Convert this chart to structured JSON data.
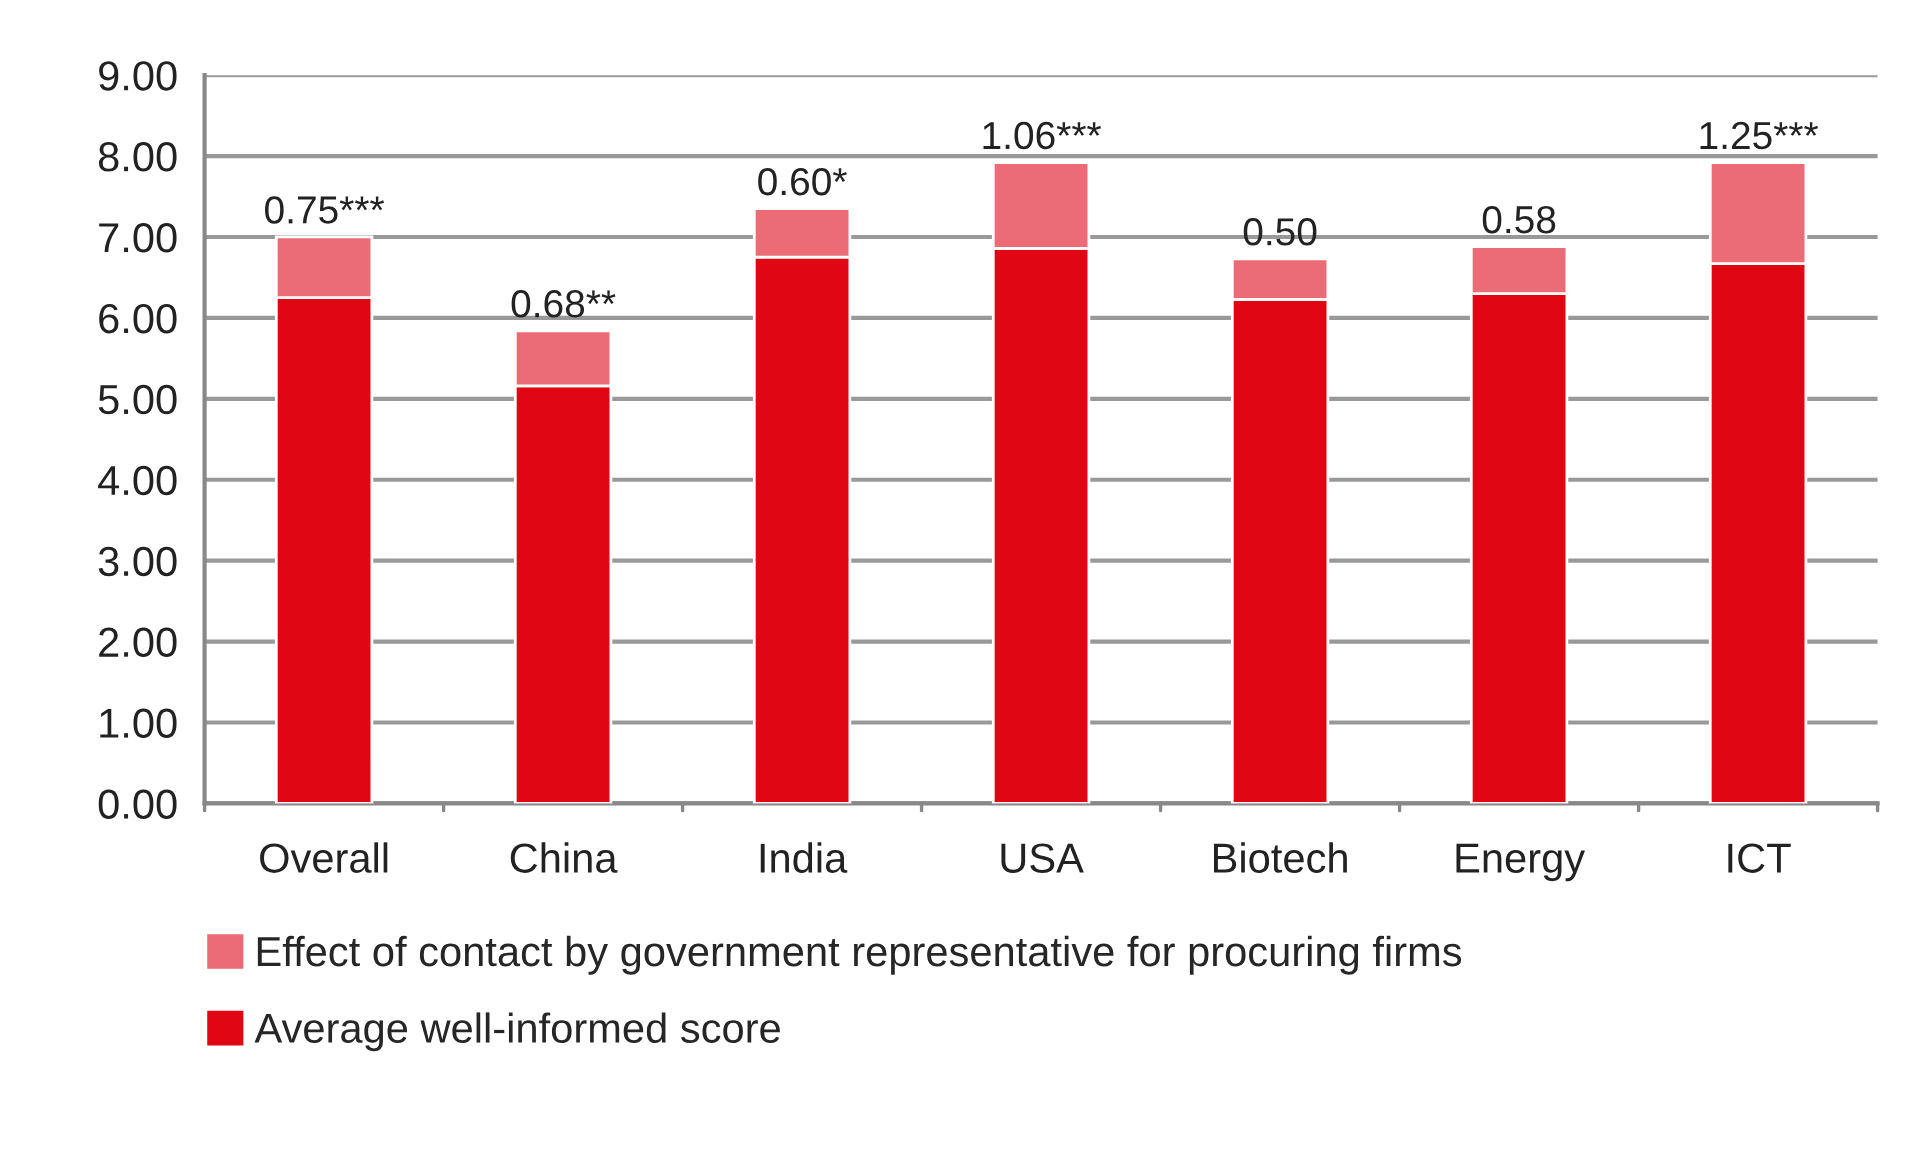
{
  "chart_data": {
    "type": "bar",
    "stacked": true,
    "categories": [
      "Overall",
      "China",
      "India",
      "USA",
      "Biotech",
      "Energy",
      "ICT"
    ],
    "series": [
      {
        "name": "Average well-informed score",
        "color": "#e10613",
        "values": [
          6.25,
          5.16,
          6.75,
          6.86,
          6.23,
          6.3,
          6.67
        ]
      },
      {
        "name": "Effect of contact by government representative for procuring firms",
        "color": "#eb6b76",
        "values": [
          0.75,
          0.68,
          0.6,
          1.06,
          0.5,
          0.58,
          1.25
        ],
        "value_labels": [
          "0.75***",
          "0.68**",
          "0.60*",
          "1.06***",
          "0.50",
          "0.58",
          "1.25***"
        ]
      }
    ],
    "ylim": [
      0,
      9
    ],
    "yticks": [
      {
        "value": 0,
        "label": "0.00"
      },
      {
        "value": 1,
        "label": "1.00"
      },
      {
        "value": 2,
        "label": "2.00"
      },
      {
        "value": 3,
        "label": "3.00"
      },
      {
        "value": 4,
        "label": "4.00"
      },
      {
        "value": 5,
        "label": "5.00"
      },
      {
        "value": 6,
        "label": "6.00"
      },
      {
        "value": 7,
        "label": "7.00"
      },
      {
        "value": 8,
        "label": "8.00"
      },
      {
        "value": 9,
        "label": "9.00"
      }
    ],
    "grid": "y",
    "legend": "bottom"
  }
}
